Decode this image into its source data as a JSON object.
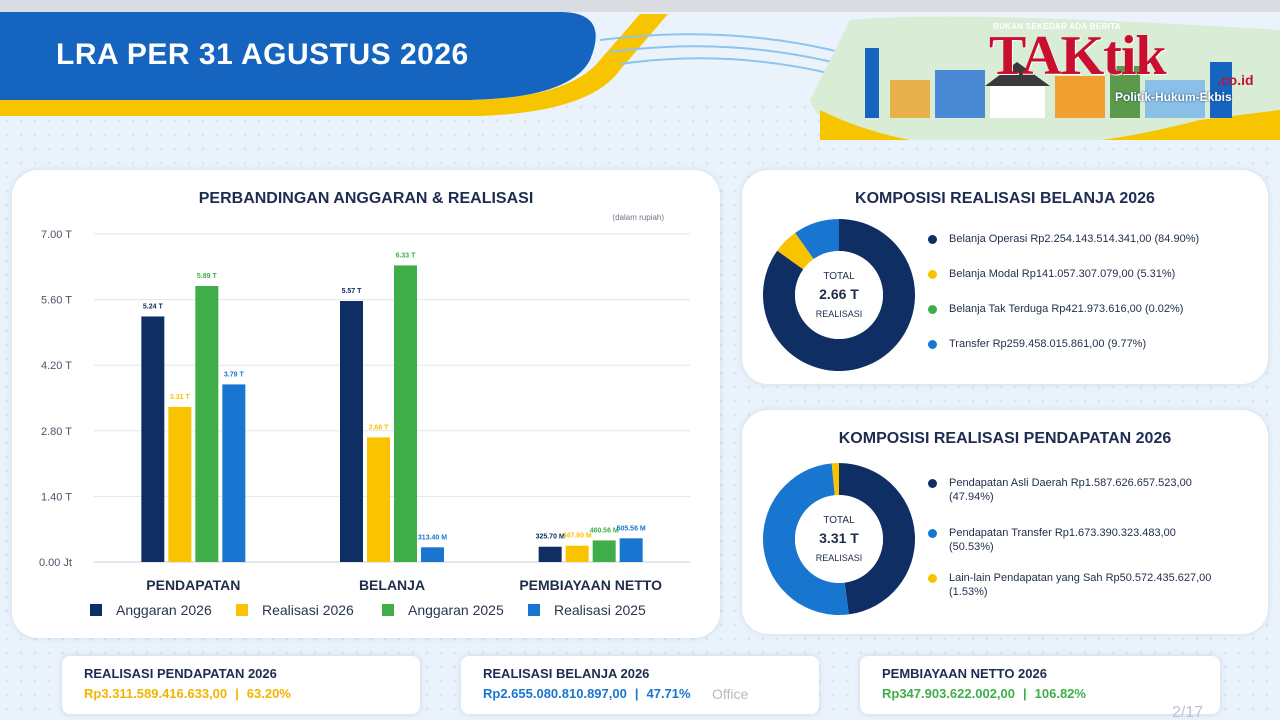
{
  "page": {
    "title": "LRA PER 31 AGUSTUS 2026",
    "page_number": "2/17",
    "overlay_text": "Office"
  },
  "logo": {
    "tagline": "BUKAN SEKEDAR ADA BERITA",
    "brand_part1": "TAK",
    "brand_part2": "tik",
    "tld": ".co.id",
    "subtitle": "Politik-Hukum-Ekbis"
  },
  "bar_card": {
    "title": "PERBANDINGAN ANGGARAN & REALISASI",
    "unit_note": "(dalam rupiah)"
  },
  "chart_data": [
    {
      "type": "bar",
      "title": "PERBANDINGAN ANGGARAN & REALISASI",
      "note": "(dalam rupiah)",
      "categories": [
        "PENDAPATAN",
        "BELANJA",
        "PEMBIAYAAN NETTO"
      ],
      "y_ticks": [
        "0.00 Jt",
        "1.40 T",
        "2.80 T",
        "4.20 T",
        "5.60 T",
        "7.00 T"
      ],
      "ylim": [
        0,
        7.0
      ],
      "y_unit": "T",
      "grid": true,
      "legend": "bottom",
      "series": [
        {
          "name": "Anggaran 2026",
          "color": "#0f2e63",
          "values": [
            5.24,
            5.57,
            0.3257
          ],
          "labels": [
            "5.24 T",
            "5.57 T",
            "325.70 M"
          ]
        },
        {
          "name": "Realisasi 2026",
          "color": "#f9c300",
          "values": [
            3.31,
            2.66,
            0.3479
          ],
          "labels": [
            "3.31 T",
            "2.66 T",
            "347.90 M"
          ]
        },
        {
          "name": "Anggaran 2025",
          "color": "#3fae49",
          "values": [
            5.89,
            6.33,
            0.46056
          ],
          "labels": [
            "5.89 T",
            "6.33 T",
            "460.56 M"
          ]
        },
        {
          "name": "Realisasi 2025",
          "color": "#1876d1",
          "values": [
            3.79,
            0.3134,
            0.50556
          ],
          "labels": [
            "3.79 T",
            "313.40 M",
            "505.56 M"
          ]
        }
      ]
    },
    {
      "type": "pie",
      "title": "KOMPOSISI REALISASI BELANJA 2026",
      "center_label": "TOTAL",
      "center_value": "2.66 T",
      "center_sub": "REALISASI",
      "slices": [
        {
          "name": "Belanja Operasi",
          "amount": "Rp2.254.143.514.341,00",
          "pct_label": "(84.90%)",
          "value": 84.9,
          "color": "#0f2e63"
        },
        {
          "name": "Belanja Modal",
          "amount": "Rp141.057.307.079,00",
          "pct_label": "(5.31%)",
          "value": 5.31,
          "color": "#f9c300"
        },
        {
          "name": "Belanja Tak Terduga",
          "amount": "Rp421.973.616,00",
          "pct_label": "(0.02%)",
          "value": 0.02,
          "color": "#3fae49"
        },
        {
          "name": "Transfer",
          "amount": "Rp259.458.015.861,00",
          "pct_label": "(9.77%)",
          "value": 9.77,
          "color": "#1876d1"
        }
      ]
    },
    {
      "type": "pie",
      "title": "KOMPOSISI REALISASI PENDAPATAN 2026",
      "center_label": "TOTAL",
      "center_value": "3.31 T",
      "center_sub": "REALISASI",
      "slices": [
        {
          "name": "Pendapatan Asli Daerah",
          "amount": "Rp1.587.626.657.523,00",
          "pct_label": "(47.94%)",
          "value": 47.94,
          "color": "#0f2e63"
        },
        {
          "name": "Pendapatan Transfer",
          "amount": "Rp1.673.390.323.483,00",
          "pct_label": "(50.53%)",
          "value": 50.53,
          "color": "#1876d1"
        },
        {
          "name": "Lain-lain Pendapatan yang Sah",
          "amount": "Rp50.572.435.627,00",
          "pct_label": "(1.53%)",
          "value": 1.53,
          "color": "#f9c300"
        }
      ]
    }
  ],
  "summary": [
    {
      "label": "REALISASI PENDAPATAN 2026",
      "amount": "Rp3.311.589.416.633,00",
      "sep": "|",
      "pct": "63.20%",
      "color": "#f2b400"
    },
    {
      "label": "REALISASI BELANJA 2026",
      "amount": "Rp2.655.080.810.897,00",
      "sep": "|",
      "pct": "47.71%",
      "color": "#1876d1"
    },
    {
      "label": "PEMBIAYAAN NETTO 2026",
      "amount": "Rp347.903.622.002,00",
      "sep": "|",
      "pct": "106.82%",
      "color": "#3fae49"
    }
  ]
}
